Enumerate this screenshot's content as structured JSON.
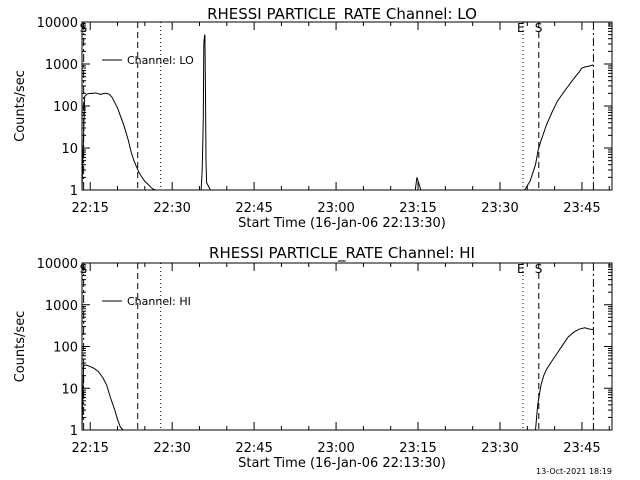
{
  "colors": {
    "background": "#ffffff",
    "foreground": "#000000"
  },
  "footer_timestamp": "13-Oct-2021 18:19",
  "chart_data": [
    {
      "type": "line",
      "title": "RHESSI PARTICLE_RATE Channel: LO",
      "xlabel": "Start Time (16-Jan-06 22:13:30)",
      "ylabel": "Counts/sec",
      "x_unit": "minutes since 22:13:30",
      "xlim": [
        0,
        97
      ],
      "ylim": [
        1,
        10000
      ],
      "yscale": "log",
      "x_ticks": [
        {
          "label": "22:15",
          "value": 1.5
        },
        {
          "label": "22:30",
          "value": 16.5
        },
        {
          "label": "22:45",
          "value": 31.5
        },
        {
          "label": "23:00",
          "value": 46.5
        },
        {
          "label": "23:15",
          "value": 61.5
        },
        {
          "label": "23:30",
          "value": 76.5
        },
        {
          "label": "23:45",
          "value": 91.5
        }
      ],
      "y_ticks": [
        {
          "label": "1",
          "value": 1
        },
        {
          "label": "10",
          "value": 10
        },
        {
          "label": "100",
          "value": 100
        },
        {
          "label": "1000",
          "value": 1000
        },
        {
          "label": "10000",
          "value": 10000
        }
      ],
      "legend": {
        "entries": [
          "Channel: LO"
        ],
        "placement": "top-left"
      },
      "markers": [
        {
          "label": "S",
          "x": 0.3,
          "style": "dash-dot"
        },
        {
          "label": "",
          "x": 10.2,
          "style": "dashed"
        },
        {
          "label": "",
          "x": 14.4,
          "style": "dotted"
        },
        {
          "label": "E",
          "x": 80.7,
          "style": "dotted"
        },
        {
          "label": "S",
          "x": 83.6,
          "style": "dashed"
        },
        {
          "label": "",
          "x": 93.6,
          "style": "dash-dot"
        }
      ],
      "series": [
        {
          "name": "Channel: LO",
          "x": [
            0,
            0.5,
            1,
            1.5,
            2,
            2.5,
            3,
            3.5,
            4,
            4.5,
            5,
            5.5,
            6,
            6.5,
            7,
            7.5,
            8,
            8.5,
            9,
            9.5,
            10,
            10.5,
            11,
            11.5,
            12,
            12.5,
            13,
            13.5,
            14,
            14.3,
            14.6,
            15,
            21.8,
            21.9,
            22,
            22.2,
            22.3,
            22.4,
            22.5,
            22.6,
            22.7,
            22.8,
            23.5,
            61,
            61.3,
            61.6,
            62,
            80,
            81,
            82,
            83,
            83.5,
            84,
            85,
            86,
            87,
            88,
            89,
            90,
            91,
            91.5,
            92,
            93,
            93.6
          ],
          "y": [
            1,
            170,
            195,
            200,
            200,
            205,
            195,
            190,
            200,
            200,
            190,
            160,
            120,
            90,
            60,
            40,
            25,
            15,
            8,
            5,
            3.5,
            2.5,
            2,
            1.6,
            1.4,
            1.2,
            1.05,
            1,
            1,
            1,
            1,
            1,
            1,
            1.8,
            3,
            50,
            3000,
            4500,
            5000,
            200,
            5,
            1.5,
            1,
            1,
            2,
            1.5,
            1,
            1,
            1,
            1.6,
            4,
            9,
            15,
            35,
            70,
            130,
            200,
            300,
            450,
            650,
            800,
            850,
            900,
            950
          ]
        }
      ]
    },
    {
      "type": "line",
      "title": "RHESSI PARTICLE_RATE Channel: HI",
      "xlabel": "Start Time (16-Jan-06 22:13:30)",
      "ylabel": "Counts/sec",
      "x_unit": "minutes since 22:13:30",
      "xlim": [
        0,
        97
      ],
      "ylim": [
        1,
        10000
      ],
      "yscale": "log",
      "x_ticks": [
        {
          "label": "22:15",
          "value": 1.5
        },
        {
          "label": "22:30",
          "value": 16.5
        },
        {
          "label": "22:45",
          "value": 31.5
        },
        {
          "label": "23:00",
          "value": 46.5
        },
        {
          "label": "23:15",
          "value": 61.5
        },
        {
          "label": "23:30",
          "value": 76.5
        },
        {
          "label": "23:45",
          "value": 91.5
        }
      ],
      "y_ticks": [
        {
          "label": "1",
          "value": 1
        },
        {
          "label": "10",
          "value": 10
        },
        {
          "label": "100",
          "value": 100
        },
        {
          "label": "1000",
          "value": 1000
        },
        {
          "label": "10000",
          "value": 10000
        }
      ],
      "legend": {
        "entries": [
          "Channel: HI"
        ],
        "placement": "top-left"
      },
      "markers": [
        {
          "label": "S",
          "x": 0.3,
          "style": "dash-dot"
        },
        {
          "label": "",
          "x": 10.2,
          "style": "dashed"
        },
        {
          "label": "",
          "x": 14.4,
          "style": "dotted"
        },
        {
          "label": "E",
          "x": 80.7,
          "style": "dotted"
        },
        {
          "label": "S",
          "x": 83.6,
          "style": "dashed"
        },
        {
          "label": "",
          "x": 93.6,
          "style": "dash-dot"
        }
      ],
      "series": [
        {
          "name": "Channel: HI",
          "x": [
            0,
            0.3,
            0.8,
            1.5,
            2.2,
            3,
            3.8,
            4.5,
            5.2,
            6,
            6.5,
            7,
            7.5,
            80,
            83,
            83.4,
            84,
            84.5,
            85,
            86,
            87,
            88,
            89,
            90,
            91,
            92,
            93,
            93.6
          ],
          "y": [
            1,
            35,
            36,
            33,
            30,
            25,
            18,
            12,
            6,
            3,
            1.8,
            1.2,
            1,
            1,
            1,
            4,
            12,
            20,
            28,
            45,
            70,
            110,
            170,
            220,
            260,
            280,
            260,
            255
          ]
        }
      ]
    }
  ]
}
